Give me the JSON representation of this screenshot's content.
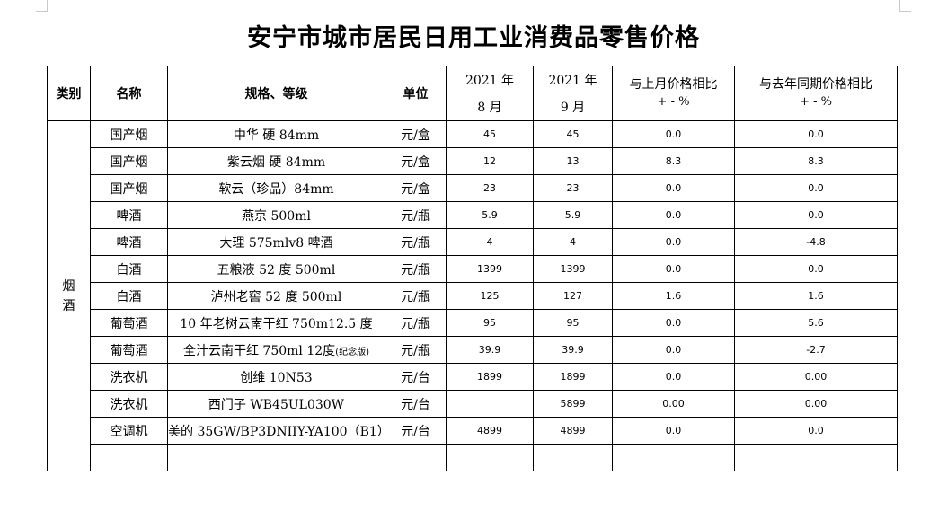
{
  "title": "安宁市城市居民日用工业消费品零售价格",
  "headers": {
    "category": "类别",
    "name": "名称",
    "spec": "规格、等级",
    "unit": "单位",
    "year1": "2021 年",
    "month1": "8 月",
    "year2": "2021 年",
    "month2": "9 月",
    "mom_label": "与上月价格相比",
    "mom_unit": "+ - %",
    "yoy_label": "与去年同期价格相比",
    "yoy_unit": "+ - %"
  },
  "category": {
    "char1": "烟",
    "char2": "酒"
  },
  "rows": [
    {
      "name": "国产烟",
      "spec": "中华 硬 84mm",
      "unit": "元/盒",
      "aug": "45",
      "sep": "45",
      "mom": "0.0",
      "yoy": "0.0"
    },
    {
      "name": "国产烟",
      "spec": "紫云烟 硬 84mm",
      "unit": "元/盒",
      "aug": "12",
      "sep": "13",
      "mom": "8.3",
      "yoy": "8.3"
    },
    {
      "name": "国产烟",
      "spec": "软云（珍品）84mm",
      "unit": "元/盒",
      "aug": "23",
      "sep": "23",
      "mom": "0.0",
      "yoy": "0.0"
    },
    {
      "name": "啤酒",
      "spec": "燕京 500ml",
      "unit": "元/瓶",
      "aug": "5.9",
      "sep": "5.9",
      "mom": "0.0",
      "yoy": "0.0"
    },
    {
      "name": "啤酒",
      "spec": "大理 575mlv8 啤酒",
      "unit": "元/瓶",
      "aug": "4",
      "sep": "4",
      "mom": "0.0",
      "yoy": "-4.8"
    },
    {
      "name": "白酒",
      "spec": "五粮液 52 度 500ml",
      "unit": "元/瓶",
      "aug": "1399",
      "sep": "1399",
      "mom": "0.0",
      "yoy": "0.0"
    },
    {
      "name": "白酒",
      "spec": "泸州老窖 52 度 500ml",
      "unit": "元/瓶",
      "aug": "125",
      "sep": "127",
      "mom": "1.6",
      "yoy": "1.6"
    },
    {
      "name": "葡萄酒",
      "spec": "10 年老树云南干红 750m12.5 度",
      "unit": "元/瓶",
      "aug": "95",
      "sep": "95",
      "mom": "0.0",
      "yoy": "5.6"
    },
    {
      "name": "葡萄酒",
      "spec": "全汁云南干红 750ml 12度",
      "spec_note": "(纪念版)",
      "unit": "元/瓶",
      "aug": "39.9",
      "sep": "39.9",
      "mom": "0.0",
      "yoy": "-2.7"
    },
    {
      "name": "洗衣机",
      "spec": "创维 10N53",
      "unit": "元/台",
      "aug": "1899",
      "sep": "1899",
      "mom": "0.0",
      "yoy": "0.00"
    },
    {
      "name": "洗衣机",
      "spec": "西门子 WB45UL030W",
      "unit": "元/台",
      "aug": "",
      "sep": "5899",
      "mom": "0.00",
      "yoy": "0.00"
    },
    {
      "name": "空调机",
      "spec": "美的 35GW/BP3DNIIY-YA100（B1）",
      "unit": "元/台",
      "aug": "4899",
      "sep": "4899",
      "mom": "0.0",
      "yoy": "0.0"
    }
  ]
}
